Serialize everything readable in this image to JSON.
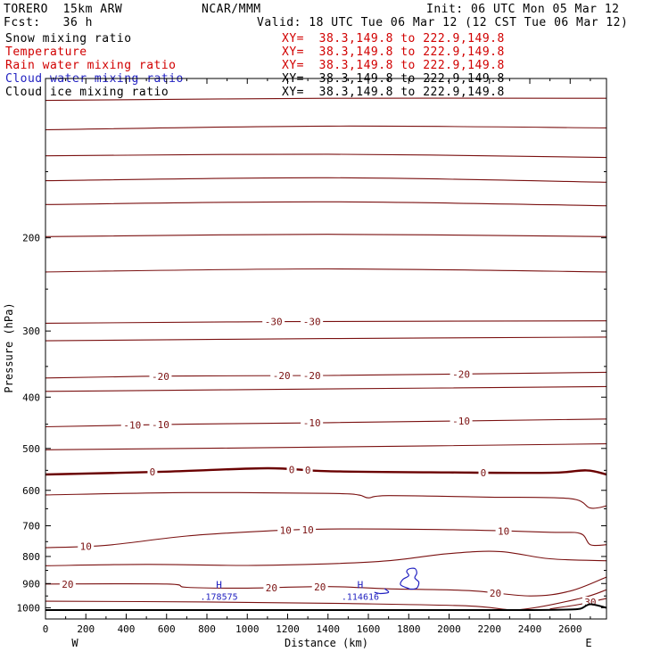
{
  "header": {
    "model": "TORERO  15km ARW",
    "org": "NCAR/MMM",
    "init": "Init: 06 UTC Mon 05 Mar 12",
    "fcst": "Fcst:   36 h",
    "valid": "Valid: 18 UTC Tue 06 Mar 12 (12 CST Tue 06 Mar 12)"
  },
  "legend": [
    {
      "label": "Snow mixing ratio",
      "xy": "XY=  38.3,149.8 to 222.9,149.8",
      "color": "#000000"
    },
    {
      "label": "Temperature",
      "xy": "XY=  38.3,149.8 to 222.9,149.8",
      "color": "#d10000"
    },
    {
      "label": "Rain water mixing ratio",
      "xy": "XY=  38.3,149.8 to 222.9,149.8",
      "color": "#d10000"
    },
    {
      "label": "Cloud water mixing ratio",
      "xy": "XY=  38.3,149.8 to 222.9,149.8",
      "color": "#2020c0"
    },
    {
      "label": "Cloud ice mixing ratio",
      "xy": "XY=  38.3,149.8 to 222.9,149.8",
      "color": "#000000"
    }
  ],
  "colors": {
    "temperature": "#7a1010",
    "zero_isotherm": "#6a0000",
    "cloud_water": "#2020c0",
    "ground": "#000000"
  },
  "chart_data": {
    "type": "line",
    "title": "Temperature",
    "xlabel": "Distance (km)",
    "ylabel": "Pressure (hPa)",
    "xlim": [
      0,
      2780
    ],
    "ylim": [
      1050,
      100
    ],
    "xticks": [
      0,
      200,
      400,
      600,
      800,
      1000,
      1200,
      1400,
      1600,
      1800,
      2000,
      2200,
      2400,
      2600
    ],
    "yticks": [
      200,
      300,
      400,
      500,
      600,
      700,
      800,
      900,
      1000
    ],
    "y_scale": "log-pressure",
    "direction_labels": {
      "left": "W",
      "right": "E"
    },
    "isotherms": [
      {
        "value": -65,
        "points": [
          [
            0,
            110
          ],
          [
            1400,
            109
          ],
          [
            2780,
            109
          ]
        ]
      },
      {
        "value": -60,
        "points": [
          [
            0,
            125
          ],
          [
            1400,
            123
          ],
          [
            2780,
            124
          ]
        ]
      },
      {
        "value": -55,
        "points": [
          [
            0,
            140
          ],
          [
            1400,
            139
          ],
          [
            2780,
            141
          ]
        ]
      },
      {
        "value": -50,
        "points": [
          [
            0,
            156
          ],
          [
            1400,
            154
          ],
          [
            2780,
            157
          ]
        ]
      },
      {
        "value": -45,
        "points": [
          [
            0,
            173
          ],
          [
            1400,
            171
          ],
          [
            2780,
            174
          ]
        ]
      },
      {
        "value": -40,
        "points": [
          [
            0,
            199
          ],
          [
            1400,
            197
          ],
          [
            2780,
            199
          ]
        ]
      },
      {
        "value": -35,
        "points": [
          [
            0,
            232
          ],
          [
            1400,
            229
          ],
          [
            2780,
            232
          ]
        ]
      },
      {
        "value": -30,
        "points": [
          [
            0,
            290
          ],
          [
            1200,
            288
          ],
          [
            2780,
            287
          ]
        ],
        "labels": [
          [
            1130,
            "-30"
          ],
          [
            1320,
            "-30"
          ]
        ]
      },
      {
        "value": -25,
        "points": [
          [
            0,
            313
          ],
          [
            1400,
            310
          ],
          [
            2780,
            308
          ]
        ]
      },
      {
        "value": -20,
        "points": [
          [
            0,
            368
          ],
          [
            600,
            365
          ],
          [
            1400,
            364
          ],
          [
            2780,
            359
          ]
        ],
        "labels": [
          [
            570,
            "-20"
          ],
          [
            1170,
            "-20"
          ],
          [
            1320,
            "-20"
          ],
          [
            2060,
            "-20"
          ]
        ]
      },
      {
        "value": -15,
        "points": [
          [
            0,
            390
          ],
          [
            1400,
            386
          ],
          [
            2780,
            382
          ]
        ]
      },
      {
        "value": -10,
        "points": [
          [
            0,
            455
          ],
          [
            700,
            450
          ],
          [
            1400,
            447
          ],
          [
            2780,
            440
          ]
        ],
        "labels": [
          [
            430,
            "-10"
          ],
          [
            570,
            "-10"
          ],
          [
            1320,
            "-10"
          ],
          [
            2060,
            "-10"
          ]
        ]
      },
      {
        "value": -5,
        "points": [
          [
            0,
            503
          ],
          [
            1400,
            497
          ],
          [
            2780,
            490
          ]
        ]
      },
      {
        "value": 0,
        "points": [
          [
            0,
            560
          ],
          [
            600,
            553
          ],
          [
            1100,
            545
          ],
          [
            1400,
            552
          ],
          [
            2000,
            555
          ],
          [
            2500,
            556
          ],
          [
            2680,
            550
          ],
          [
            2780,
            560
          ]
        ],
        "labels": [
          [
            530,
            "0"
          ],
          [
            1220,
            "0"
          ],
          [
            1300,
            "0"
          ],
          [
            2170,
            "0"
          ]
        ],
        "bold": true
      },
      {
        "value": 5,
        "points": [
          [
            0,
            612
          ],
          [
            700,
            606
          ],
          [
            1400,
            608
          ],
          [
            1550,
            612
          ],
          [
            1600,
            620
          ],
          [
            1700,
            614
          ],
          [
            2200,
            618
          ],
          [
            2600,
            622
          ],
          [
            2700,
            648
          ],
          [
            2780,
            642
          ]
        ]
      },
      {
        "value": 10,
        "points": [
          [
            0,
            770
          ],
          [
            300,
            762
          ],
          [
            700,
            732
          ],
          [
            1100,
            716
          ],
          [
            1400,
            710
          ],
          [
            2000,
            712
          ],
          [
            2500,
            720
          ],
          [
            2650,
            724
          ],
          [
            2700,
            760
          ],
          [
            2780,
            760
          ]
        ],
        "labels": [
          [
            200,
            "10"
          ],
          [
            1190,
            "10"
          ],
          [
            1300,
            "10"
          ],
          [
            2270,
            "10"
          ]
        ]
      },
      {
        "value": 15,
        "points": [
          [
            0,
            833
          ],
          [
            500,
            828
          ],
          [
            1000,
            832
          ],
          [
            1400,
            826
          ],
          [
            1700,
            815
          ],
          [
            2000,
            790
          ],
          [
            2250,
            783
          ],
          [
            2500,
            808
          ],
          [
            2780,
            815
          ]
        ]
      },
      {
        "value": 20,
        "points": [
          [
            0,
            902
          ],
          [
            600,
            902
          ],
          [
            700,
            915
          ],
          [
            1000,
            918
          ],
          [
            1400,
            912
          ],
          [
            1700,
            921
          ],
          [
            2100,
            928
          ],
          [
            2400,
            950
          ],
          [
            2600,
            930
          ],
          [
            2780,
            875
          ]
        ],
        "labels": [
          [
            110,
            "20"
          ],
          [
            1120,
            "20"
          ],
          [
            1360,
            "20"
          ],
          [
            2230,
            "20"
          ]
        ]
      },
      {
        "value": 25,
        "points": [
          [
            0,
            972
          ],
          [
            800,
            975
          ],
          [
            1500,
            982
          ],
          [
            2100,
            992
          ],
          [
            2350,
            1008
          ],
          [
            2650,
            960
          ],
          [
            2780,
            925
          ]
        ]
      },
      {
        "value": 30,
        "points": [
          [
            2500,
            1005
          ],
          [
            2650,
            985
          ],
          [
            2780,
            960
          ]
        ],
        "labels": [
          [
            2700,
            "30"
          ]
        ]
      }
    ],
    "ground": [
      [
        0,
        1010
      ],
      [
        1400,
        1010
      ],
      [
        2300,
        1010
      ],
      [
        2580,
        1008
      ],
      [
        2650,
        1004
      ],
      [
        2700,
        985
      ],
      [
        2780,
        1000
      ]
    ],
    "cloud_water_maxima": [
      {
        "x": 860,
        "p": 905,
        "symbol": "H",
        "value": ".178575"
      },
      {
        "x": 1560,
        "p": 905,
        "symbol": "H",
        "value": ".114616"
      }
    ]
  }
}
